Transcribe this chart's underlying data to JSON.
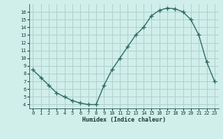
{
  "x": [
    0,
    1,
    2,
    3,
    4,
    5,
    6,
    7,
    8,
    9,
    10,
    11,
    12,
    13,
    14,
    15,
    16,
    17,
    18,
    19,
    20,
    21,
    22,
    23
  ],
  "y": [
    8.5,
    7.5,
    6.5,
    5.5,
    5.0,
    4.5,
    4.2,
    4.0,
    4.0,
    6.5,
    8.5,
    10.0,
    11.5,
    13.0,
    14.0,
    15.5,
    16.2,
    16.5,
    16.4,
    16.0,
    15.0,
    13.0,
    9.5,
    7.0
  ],
  "xlabel": "Humidex (Indice chaleur)",
  "bg_color": "#d0eeea",
  "grid_color": "#b0d0cc",
  "line_color": "#2d6b60",
  "marker_color": "#2d6b60",
  "ylim": [
    3.5,
    17.0
  ],
  "xlim": [
    -0.5,
    23.5
  ],
  "yticks": [
    4,
    5,
    6,
    7,
    8,
    9,
    10,
    11,
    12,
    13,
    14,
    15,
    16
  ],
  "xticks": [
    0,
    1,
    2,
    3,
    4,
    5,
    6,
    7,
    8,
    9,
    10,
    11,
    12,
    13,
    14,
    15,
    16,
    17,
    18,
    19,
    20,
    21,
    22,
    23
  ]
}
